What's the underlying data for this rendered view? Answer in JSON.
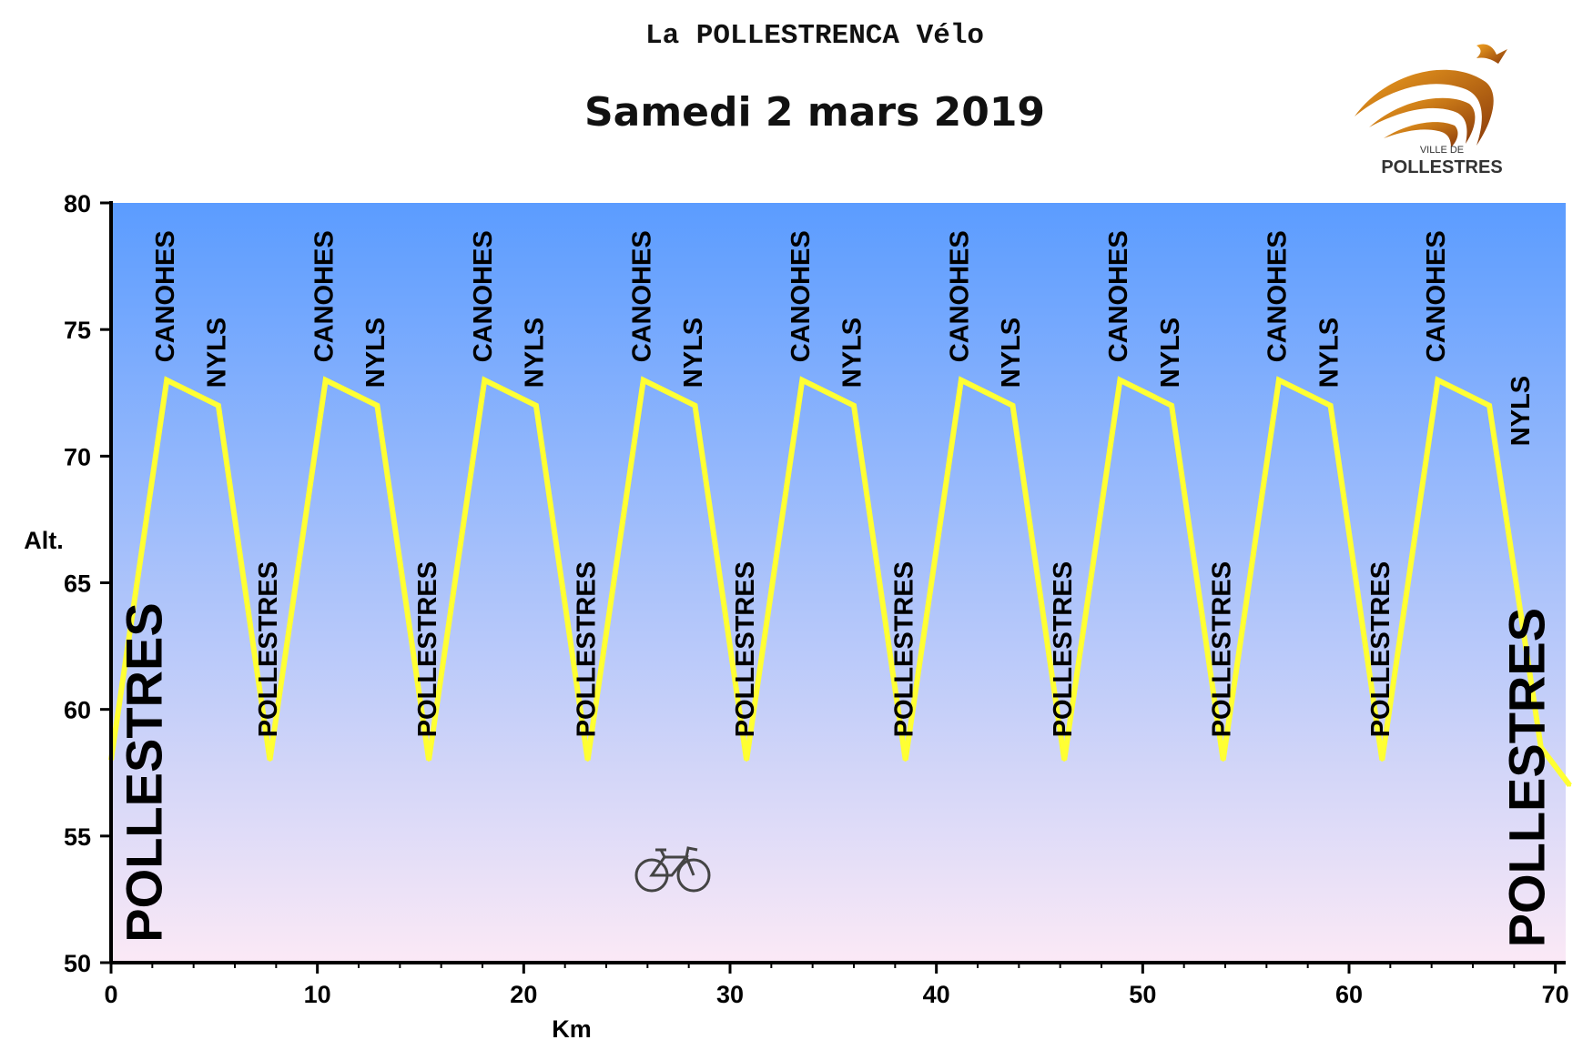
{
  "header": {
    "title": "La POLLESTRENCA Vélo",
    "subtitle": "Samedi 2 mars 2019"
  },
  "logo": {
    "line1": "VILLE DE",
    "line2": "POLLESTRES",
    "colors": {
      "swoosh_dark": "#8a3a0a",
      "swoosh_light": "#f0a020",
      "text": "#333333"
    }
  },
  "colors": {
    "profile_line": "#ffff33",
    "background_top": "#5b9cff",
    "background_bottom": "#fbe9f6",
    "axis": "#000000"
  },
  "decoration": {
    "icon": "bicycle-icon"
  },
  "chart_data": {
    "type": "line",
    "xlabel": "Km",
    "ylabel": "Alt.",
    "xlim": [
      0,
      70.5
    ],
    "ylim": [
      50,
      80
    ],
    "xticks": [
      0,
      10,
      20,
      30,
      40,
      50,
      60,
      70
    ],
    "yticks": [
      50,
      55,
      60,
      65,
      70,
      75,
      80
    ],
    "grid": false,
    "legend": "none",
    "series": [
      {
        "x": [
          0,
          2.7,
          5.2,
          7.7,
          10.4,
          12.9,
          15.4,
          18.1,
          20.6,
          23.1,
          25.8,
          28.3,
          30.8,
          33.5,
          36.0,
          38.5,
          41.2,
          43.7,
          46.2,
          48.9,
          51.4,
          53.9,
          56.6,
          59.1,
          61.6,
          64.3,
          66.8,
          69.3,
          70.7
        ],
        "y": [
          58,
          73,
          72,
          58,
          73,
          72,
          58,
          73,
          72,
          58,
          73,
          72,
          58,
          73,
          72,
          58,
          73,
          72,
          58,
          73,
          72,
          58,
          73,
          72,
          58,
          73,
          72,
          58.5,
          57
        ]
      }
    ],
    "annotations": [
      {
        "text": "POLLESTRES",
        "x": 1.8,
        "y": 50.8,
        "size": "large"
      },
      {
        "text": "CANOHES",
        "x": 2.7,
        "y": 73.7,
        "size": "small"
      },
      {
        "text": "NYLS",
        "x": 5.2,
        "y": 72.7,
        "size": "small"
      },
      {
        "text": "POLLESTRES",
        "x": 7.7,
        "y": 58.9,
        "size": "small"
      },
      {
        "text": "CANOHES",
        "x": 10.4,
        "y": 73.7,
        "size": "small"
      },
      {
        "text": "NYLS",
        "x": 12.9,
        "y": 72.7,
        "size": "small"
      },
      {
        "text": "POLLESTRES",
        "x": 15.4,
        "y": 58.9,
        "size": "small"
      },
      {
        "text": "CANOHES",
        "x": 18.1,
        "y": 73.7,
        "size": "small"
      },
      {
        "text": "NYLS",
        "x": 20.6,
        "y": 72.7,
        "size": "small"
      },
      {
        "text": "POLLESTRES",
        "x": 23.1,
        "y": 58.9,
        "size": "small"
      },
      {
        "text": "CANOHES",
        "x": 25.8,
        "y": 73.7,
        "size": "small"
      },
      {
        "text": "NYLS",
        "x": 28.3,
        "y": 72.7,
        "size": "small"
      },
      {
        "text": "POLLESTRES",
        "x": 30.8,
        "y": 58.9,
        "size": "small"
      },
      {
        "text": "CANOHES",
        "x": 33.5,
        "y": 73.7,
        "size": "small"
      },
      {
        "text": "NYLS",
        "x": 36.0,
        "y": 72.7,
        "size": "small"
      },
      {
        "text": "POLLESTRES",
        "x": 38.5,
        "y": 58.9,
        "size": "small"
      },
      {
        "text": "CANOHES",
        "x": 41.2,
        "y": 73.7,
        "size": "small"
      },
      {
        "text": "NYLS",
        "x": 43.7,
        "y": 72.7,
        "size": "small"
      },
      {
        "text": "POLLESTRES",
        "x": 46.2,
        "y": 58.9,
        "size": "small"
      },
      {
        "text": "CANOHES",
        "x": 48.9,
        "y": 73.7,
        "size": "small"
      },
      {
        "text": "NYLS",
        "x": 51.4,
        "y": 72.7,
        "size": "small"
      },
      {
        "text": "POLLESTRES",
        "x": 53.9,
        "y": 58.9,
        "size": "small"
      },
      {
        "text": "CANOHES",
        "x": 56.6,
        "y": 73.7,
        "size": "small"
      },
      {
        "text": "NYLS",
        "x": 59.1,
        "y": 72.7,
        "size": "small"
      },
      {
        "text": "POLLESTRES",
        "x": 61.6,
        "y": 58.9,
        "size": "small"
      },
      {
        "text": "CANOHES",
        "x": 64.3,
        "y": 73.7,
        "size": "small"
      },
      {
        "text": "NYLS",
        "x": 68.4,
        "y": 70.4,
        "size": "small"
      },
      {
        "text": "POLLESTRES",
        "x": 68.8,
        "y": 50.6,
        "size": "large"
      }
    ]
  }
}
